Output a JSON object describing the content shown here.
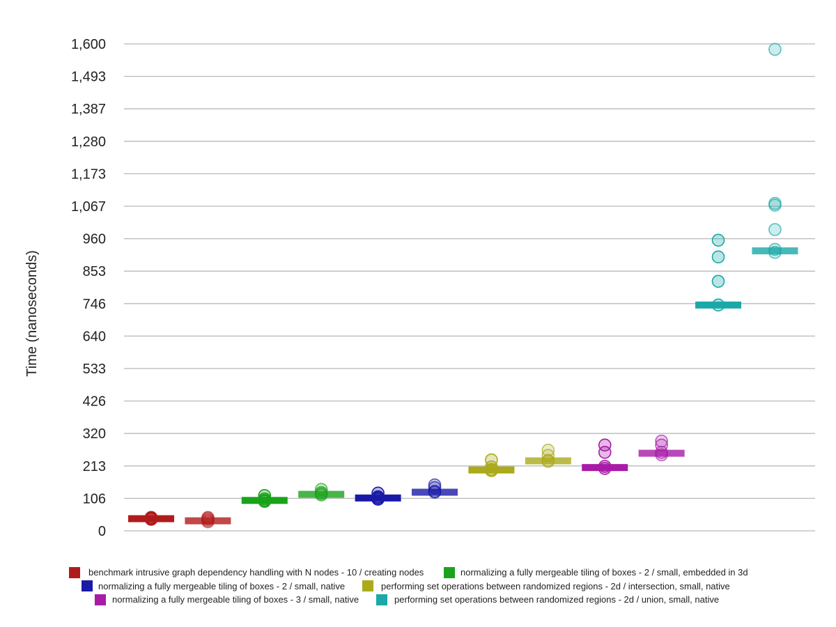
{
  "chart_data": {
    "type": "scatter",
    "ylabel": "Time (nanoseconds)",
    "ylim": [
      0,
      1600
    ],
    "yticks": [
      "0",
      "106",
      "213",
      "320",
      "426",
      "533",
      "640",
      "746",
      "853",
      "960",
      "1,067",
      "1,173",
      "1,280",
      "1,387",
      "1,493",
      "1,600"
    ],
    "grid": true,
    "legend_position": "bottom",
    "series": [
      {
        "name": "benchmark intrusive graph dependency handling with N nodes - 10 / creating nodes",
        "color": "#b01c1c",
        "groups": [
          {
            "median": 40,
            "points": [
              38,
              40,
              42,
              44
            ]
          },
          {
            "median": 33,
            "points": [
              30,
              35,
              40,
              44
            ]
          }
        ]
      },
      {
        "name": "normalizing a fully mergeable tiling of boxes - 2 / small, embedded in 3d",
        "color": "#1aa31a",
        "groups": [
          {
            "median": 100,
            "points": [
              97,
              100,
              105,
              116
            ]
          },
          {
            "median": 120,
            "points": [
              118,
              122,
              126,
              136
            ]
          }
        ]
      },
      {
        "name": "normalizing a fully mergeable tiling of boxes - 2 / small, native",
        "color": "#1a1aa8",
        "groups": [
          {
            "median": 108,
            "points": [
              104,
              108,
              112,
              124
            ]
          },
          {
            "median": 127,
            "points": [
              127,
              130,
              142,
              151
            ]
          }
        ]
      },
      {
        "name": "performing set operations between randomized regions - 2d / intersection, small, native",
        "color": "#aaaa1a",
        "groups": [
          {
            "median": 200,
            "points": [
              198,
              202,
              210,
              233
            ]
          },
          {
            "median": 230,
            "points": [
              228,
              232,
              248,
              265
            ]
          }
        ]
      },
      {
        "name": "normalizing a fully mergeable tiling of boxes - 3 / small, native",
        "color": "#a81aa8",
        "groups": [
          {
            "median": 208,
            "points": [
              205,
              212,
              258,
              282
            ]
          },
          {
            "median": 255,
            "points": [
              250,
              258,
              282,
              295
            ]
          }
        ]
      },
      {
        "name": "performing set operations between randomized regions - 2d / union, small, native",
        "color": "#1aa8a8",
        "groups": [
          {
            "median": 742,
            "points": [
              742,
              820,
              900,
              955
            ]
          },
          {
            "median": 920,
            "points": [
              915,
              925,
              990,
              1070,
              1076,
              1582
            ]
          }
        ]
      }
    ]
  }
}
